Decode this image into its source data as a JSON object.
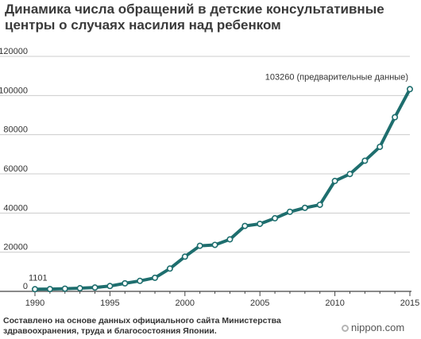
{
  "title": "Динамика числа обращений в детские консультативные центры о случаях насилия над ребенком",
  "source": "Составлено на основе данных официального сайта Министерства здравоохранения, труда и благосостояния Японии.",
  "brand": "nippon.com",
  "colors": {
    "line": "#1e6e6e",
    "marker_fill": "#1e6e6e",
    "marker_stroke": "#ffffff",
    "grid": "#cccccc",
    "axis": "#444444"
  },
  "chart_data": {
    "type": "line",
    "title": "Динамика числа обращений в детские консультативные центры о случаях насилия над ребенком",
    "xlabel": "",
    "ylabel": "",
    "xlim": [
      1990,
      2015
    ],
    "ylim": [
      0,
      120000
    ],
    "grid": true,
    "legend": "none",
    "x_ticks": [
      "1990",
      "1995",
      "2000",
      "2005",
      "2010",
      "2015"
    ],
    "y_ticks": [
      "0",
      "20000",
      "40000",
      "60000",
      "80000",
      "100000",
      "120000"
    ],
    "series": [
      {
        "x": [
          1990,
          1991,
          1992,
          1993,
          1994,
          1995,
          1996,
          1997,
          1998,
          1999,
          2000,
          2001,
          2002,
          2003,
          2004,
          2005,
          2006,
          2007,
          2008,
          2009,
          2010,
          2011,
          2012,
          2013,
          2014,
          2015
        ],
        "values": [
          1101,
          1171,
          1372,
          1611,
          1961,
          2722,
          4102,
          5352,
          6932,
          11631,
          17725,
          23274,
          23738,
          26569,
          33408,
          34472,
          37323,
          40639,
          42664,
          44211,
          56384,
          59919,
          66701,
          73802,
          88931,
          103260
        ]
      }
    ],
    "annotations": [
      {
        "x": 1990,
        "y": 1101,
        "text": "1101"
      },
      {
        "x": 2015,
        "y": 103260,
        "text": "103260 (предварительные данные)"
      }
    ]
  }
}
